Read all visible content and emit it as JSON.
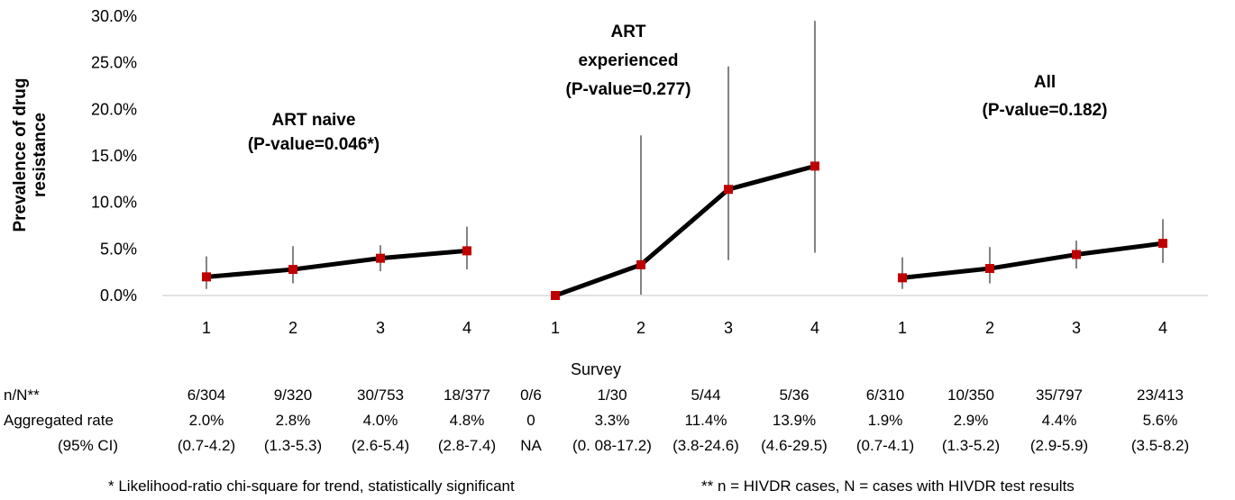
{
  "chart_data": {
    "type": "line",
    "ylabel_lines": [
      "Prevalence of drug",
      "resistance"
    ],
    "xlabel": "Survey",
    "ylim": [
      0,
      30
    ],
    "yticks": [
      "0.0%",
      "5.0%",
      "10.0%",
      "15.0%",
      "20.0%",
      "25.0%",
      "30.0%"
    ],
    "categories": [
      "1",
      "2",
      "3",
      "4",
      "1",
      "2",
      "3",
      "4",
      "1",
      "2",
      "3",
      "4"
    ],
    "series": [
      {
        "name": "",
        "points": [
          {
            "x": 1,
            "y": 2.0,
            "lo": 0.7,
            "hi": 4.2
          },
          {
            "x": 2,
            "y": 2.8,
            "lo": 1.3,
            "hi": 5.3
          },
          {
            "x": 3,
            "y": 4.0,
            "lo": 2.6,
            "hi": 5.4
          },
          {
            "x": 4,
            "y": 4.8,
            "lo": 2.8,
            "hi": 7.4
          }
        ]
      },
      {
        "name": "",
        "points": [
          {
            "x": 1,
            "y": 0,
            "lo": null,
            "hi": null
          },
          {
            "x": 2,
            "y": 3.3,
            "lo": 0.08,
            "hi": 17.2
          },
          {
            "x": 3,
            "y": 11.4,
            "lo": 3.8,
            "hi": 24.6
          },
          {
            "x": 4,
            "y": 13.9,
            "lo": 4.6,
            "hi": 29.5
          }
        ]
      },
      {
        "name": "",
        "points": [
          {
            "x": 1,
            "y": 1.9,
            "lo": 0.7,
            "hi": 4.1
          },
          {
            "x": 2,
            "y": 2.9,
            "lo": 1.3,
            "hi": 5.2
          },
          {
            "x": 3,
            "y": 4.4,
            "lo": 2.9,
            "hi": 5.9
          },
          {
            "x": 4,
            "y": 5.6,
            "lo": 3.5,
            "hi": 8.2
          }
        ]
      }
    ],
    "annotations": [
      [
        "ART naive",
        "(P-value=0.046*)"
      ],
      [
        "ART",
        "experienced",
        "(P-value=0.277)"
      ],
      [
        "All",
        "(P-value=0.182)"
      ]
    ],
    "line_color": "#000000",
    "marker_color": "#c00000",
    "grid": false
  },
  "table": {
    "row_labels": [
      "n/N**",
      "Aggregated rate",
      "(95% CI)"
    ],
    "n_over_N": [
      "6/304",
      "9/320",
      "30/753",
      "18/377",
      "0/6",
      "1/30",
      "5/44",
      "5/36",
      "6/310",
      "10/350",
      "35/797",
      "23/413"
    ],
    "rates": [
      "2.0%",
      "2.8%",
      "4.0%",
      "4.8%",
      "0",
      "3.3%",
      "11.4%",
      "13.9%",
      "1.9%",
      "2.9%",
      "4.4%",
      "5.6%"
    ],
    "ci": [
      "(0.7-4.2)",
      "(1.3-5.3)",
      "(2.6-5.4)",
      "(2.8-7.4)",
      "NA",
      "(0. 08-17.2)",
      "(3.8-24.6)",
      "(4.6-29.5)",
      "(0.7-4.1)",
      "(1.3-5.2)",
      "(2.9-5.9)",
      "(3.5-8.2)"
    ]
  },
  "footnotes": {
    "left": "* Likelihood-ratio chi-square for trend, statistically significant",
    "right": "** n = HIVDR cases, N = cases with HIVDR test results"
  }
}
